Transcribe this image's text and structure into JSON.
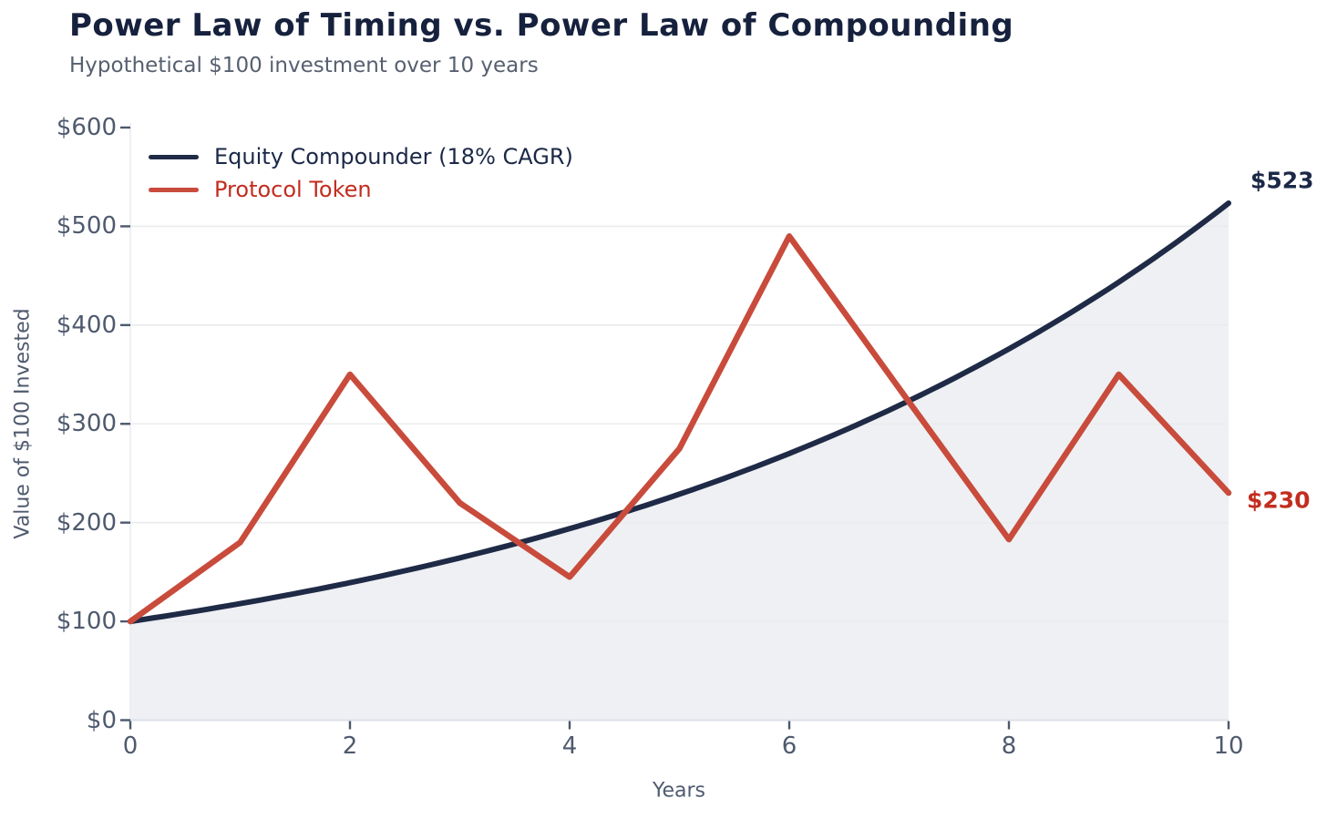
{
  "header": {
    "title": "Power Law of Timing vs. Power Law of Compounding",
    "subtitle": "Hypothetical $100 investment over 10 years"
  },
  "chart_data": {
    "type": "line",
    "title": "Power Law of Timing vs. Power Law of Compounding",
    "subtitle": "Hypothetical $100 investment over 10 years",
    "xlabel": "Years",
    "ylabel": "Value of $100 Invested",
    "xlim": [
      0,
      10
    ],
    "ylim": [
      0,
      600
    ],
    "x": [
      0,
      1,
      2,
      3,
      4,
      5,
      6,
      7,
      8,
      9,
      10
    ],
    "series": [
      {
        "name": "Equity Compounder (18% CAGR)",
        "color": "#1f2a46",
        "values": [
          100,
          118,
          139.2,
          164.3,
          193.9,
          228.8,
          270.0,
          318.6,
          375.9,
          443.5,
          523.4
        ],
        "interpolation": "exponential",
        "area_fill": true,
        "end_label": "$523",
        "end_label_color": "#1b2847"
      },
      {
        "name": "Protocol Token",
        "color": "#c84b3c",
        "values": [
          100,
          180,
          350,
          220,
          145,
          275,
          490,
          336,
          183,
          350,
          230
        ],
        "interpolation": "linear",
        "area_fill": false,
        "end_label": "$230",
        "end_label_color": "#c22d1f"
      }
    ],
    "y_ticks": [
      "$0",
      "$100",
      "$200",
      "$300",
      "$400",
      "$500",
      "$600"
    ],
    "y_tick_values": [
      0,
      100,
      200,
      300,
      400,
      500,
      600
    ],
    "x_ticks": [
      "0",
      "2",
      "4",
      "6",
      "8",
      "10"
    ],
    "x_tick_values": [
      0,
      2,
      4,
      6,
      8,
      10
    ],
    "grid": "horizontal",
    "legend_position": "upper-left",
    "legend_text_colors": [
      "#1b2847",
      "#c22d1f"
    ],
    "area_fill_color": "#eef0f3",
    "gridline_color": "#e9ebee",
    "axis_line_color": "#dce0e8",
    "tick_mark_color": "#4c596e"
  }
}
